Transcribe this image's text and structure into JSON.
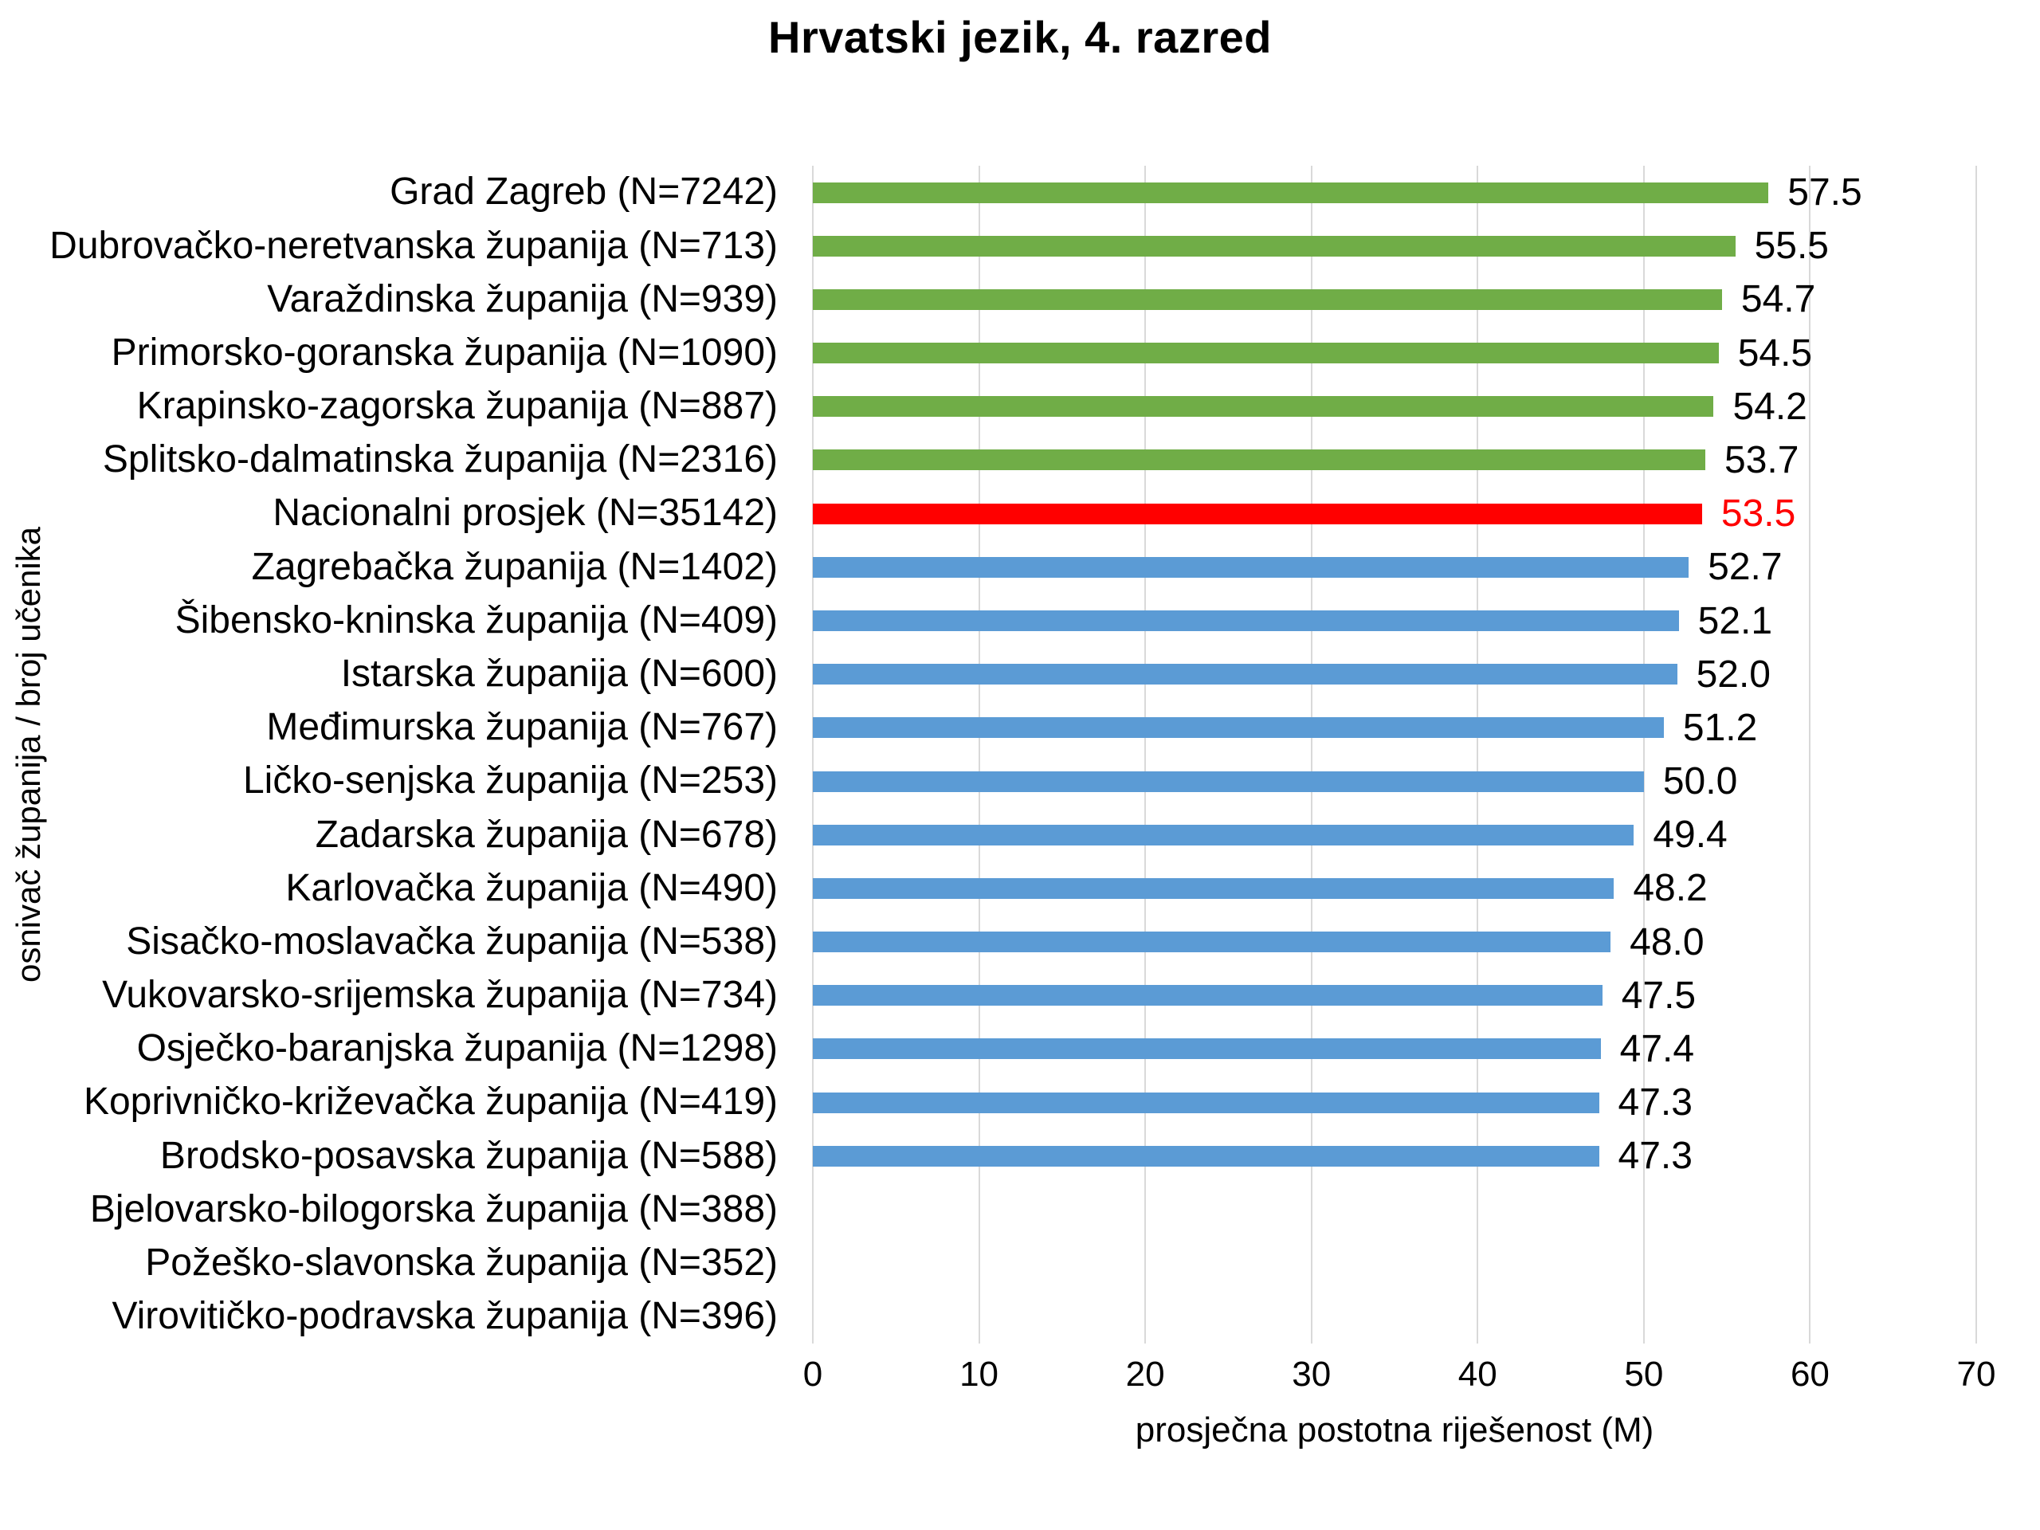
{
  "title": "Hrvatski jezik, 4. razred",
  "colors": {
    "county_above_national": "#70AD47",
    "national_average": "#FF0000",
    "county_below_national": "#5B9BD5",
    "gridline": "#D9D9D9",
    "text": "#000000",
    "national_value_text": "#FF0000",
    "background": "#FFFFFF"
  },
  "chart_data": {
    "type": "bar",
    "orientation": "horizontal",
    "title": "Hrvatski jezik, 4. razred",
    "xlabel": "prosječna postotna riješenost (M)",
    "ylabel": "osnivač županija / broj učenika",
    "xlim": [
      0,
      70
    ],
    "xticks": [
      "0",
      "10",
      "20",
      "30",
      "40",
      "50",
      "60",
      "70"
    ],
    "grid": true,
    "legend": false,
    "bars": [
      {
        "label": "Grad Zagreb (N=7242)",
        "value": 57.5,
        "display": "57.5",
        "group": "county_above_national"
      },
      {
        "label": "Dubrovačko-neretvanska županija (N=713)",
        "value": 55.5,
        "display": "55.5",
        "group": "county_above_national"
      },
      {
        "label": "Varaždinska županija (N=939)",
        "value": 54.7,
        "display": "54.7",
        "group": "county_above_national"
      },
      {
        "label": "Primorsko-goranska županija (N=1090)",
        "value": 54.5,
        "display": "54.5",
        "group": "county_above_national"
      },
      {
        "label": "Krapinsko-zagorska županija (N=887)",
        "value": 54.2,
        "display": "54.2",
        "group": "county_above_national"
      },
      {
        "label": "Splitsko-dalmatinska županija (N=2316)",
        "value": 53.7,
        "display": "53.7",
        "group": "county_above_national"
      },
      {
        "label": "Nacionalni prosjek (N=35142)",
        "value": 53.5,
        "display": "53.5",
        "group": "national_average"
      },
      {
        "label": "Zagrebačka županija (N=1402)",
        "value": 52.7,
        "display": "52.7",
        "group": "county_below_national"
      },
      {
        "label": "Šibensko-kninska županija (N=409)",
        "value": 52.1,
        "display": "52.1",
        "group": "county_below_national"
      },
      {
        "label": "Istarska županija (N=600)",
        "value": 52.0,
        "display": "52.0",
        "group": "county_below_national"
      },
      {
        "label": "Međimurska županija (N=767)",
        "value": 51.2,
        "display": "51.2",
        "group": "county_below_national"
      },
      {
        "label": "Ličko-senjska županija (N=253)",
        "value": 50.0,
        "display": "50.0",
        "group": "county_below_national"
      },
      {
        "label": "Zadarska županija (N=678)",
        "value": 49.4,
        "display": "49.4",
        "group": "county_below_national"
      },
      {
        "label": "Karlovačka županija (N=490)",
        "value": 48.2,
        "display": "48.2",
        "group": "county_below_national"
      },
      {
        "label": "Sisačko-moslavačka županija (N=538)",
        "value": 48.0,
        "display": "48.0",
        "group": "county_below_national"
      },
      {
        "label": "Vukovarsko-srijemska županija (N=734)",
        "value": 47.5,
        "display": "47.5",
        "group": "county_below_national"
      },
      {
        "label": "Osječko-baranjska županija (N=1298)",
        "value": 47.4,
        "display": "47.4",
        "group": "county_below_national"
      },
      {
        "label": "Koprivničko-križevačka županija (N=419)",
        "value": 47.3,
        "display": "47.3",
        "group": "county_below_national"
      },
      {
        "label": "Brodsko-posavska županija (N=588)",
        "value": 47.3,
        "display": "47.3",
        "group": "county_below_national"
      },
      {
        "label": "Bjelovarsko-bilogorska županija (N=388)",
        "value": null,
        "display": "",
        "group": "none"
      },
      {
        "label": "Požeško-slavonska županija (N=352)",
        "value": null,
        "display": "",
        "group": "none"
      },
      {
        "label": "Virovitičko-podravska županija (N=396)",
        "value": null,
        "display": "",
        "group": "none"
      }
    ]
  }
}
